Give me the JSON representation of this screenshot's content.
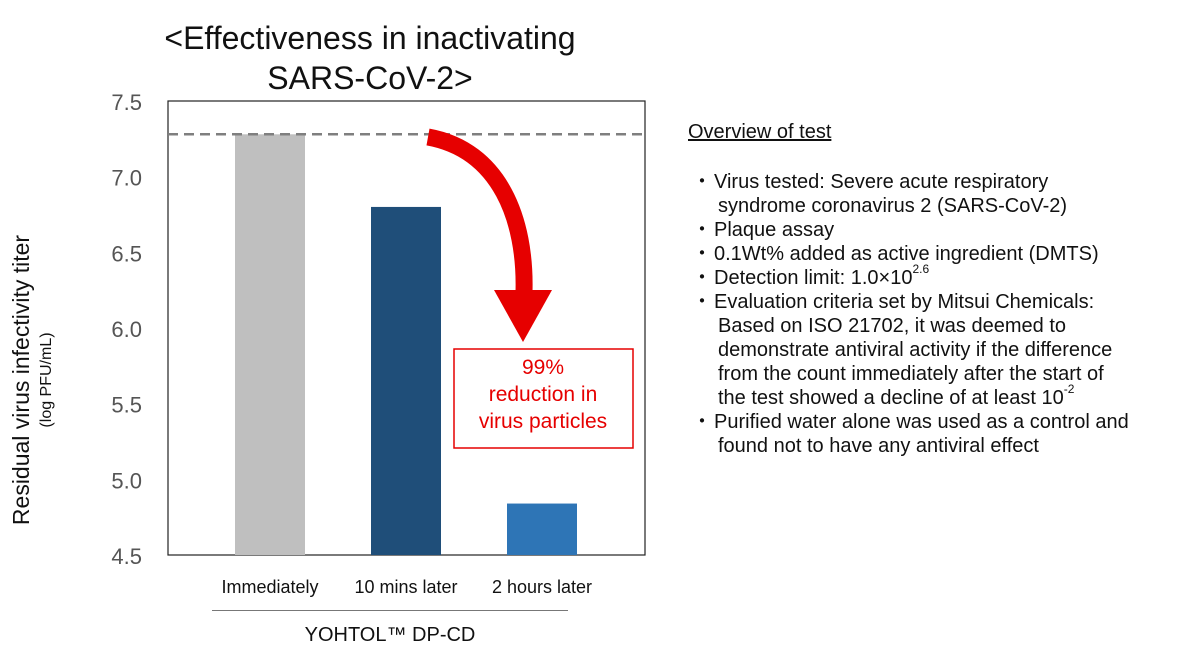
{
  "chart_data": {
    "type": "bar",
    "title_lines": [
      "<Effectiveness in inactivating",
      "SARS-CoV-2>"
    ],
    "categories": [
      "Immediately",
      "10 mins later",
      "2 hours later"
    ],
    "values": [
      7.28,
      6.8,
      4.84
    ],
    "bar_colors": [
      "#bfbfbf",
      "#1f4e79",
      "#2e75b6"
    ],
    "ylim": [
      4.5,
      7.5
    ],
    "yticks": [
      "7.5",
      "7.0",
      "6.5",
      "6.0",
      "5.5",
      "5.0",
      "4.5"
    ],
    "ylabel": "Residual virus infectivity titer",
    "ylabel_unit": "(log PFU/mL)",
    "reference_line_value": 7.28,
    "group_label": "YOHTOL™ DP-CD",
    "annotation_lines": [
      "99%",
      "reduction in",
      "virus particles"
    ],
    "annotation_color": "#e60000"
  },
  "overview": {
    "heading": "Overview of test",
    "bullet": "・",
    "items": [
      {
        "lines": [
          "Virus tested: Severe acute respiratory",
          "syndrome coronavirus 2 (SARS-CoV-2)"
        ]
      },
      {
        "lines": [
          "Plaque assay"
        ]
      },
      {
        "lines": [
          "0.1Wt% added as active ingredient (DMTS)"
        ]
      },
      {
        "lines": [
          "Detection limit: 1.0×10"
        ],
        "sup": "2.6"
      },
      {
        "lines": [
          "Evaluation criteria set by Mitsui Chemicals:",
          "Based on ISO 21702, it was deemed to",
          "demonstrate antiviral activity if the difference",
          "from the count immediately after the start of",
          "the test showed a decline of at least 10"
        ],
        "sup": "-2"
      },
      {
        "lines": [
          "Purified water alone was used as a control and",
          "found not to have any antiviral effect"
        ]
      }
    ]
  }
}
